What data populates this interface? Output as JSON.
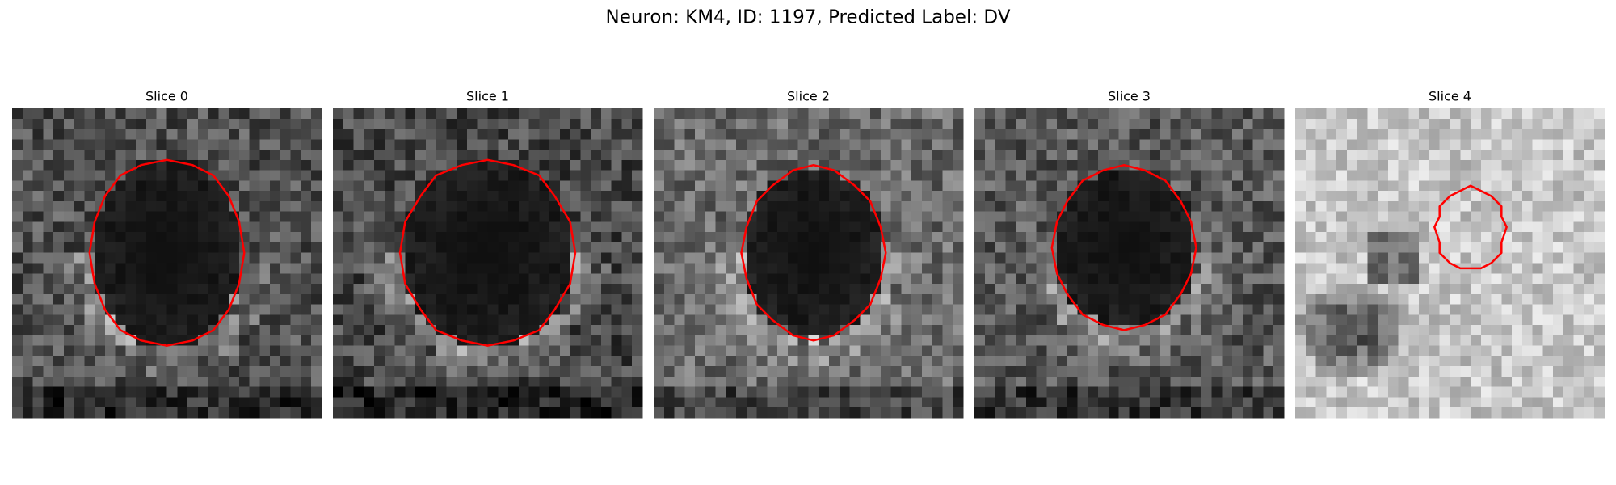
{
  "title": "Neuron: KM4, ID: 1197, Predicted Label: DV",
  "panels": [
    {
      "title": "Slice 0"
    },
    {
      "title": "Slice 1"
    },
    {
      "title": "Slice 2"
    },
    {
      "title": "Slice 3"
    },
    {
      "title": "Slice 4"
    }
  ]
}
